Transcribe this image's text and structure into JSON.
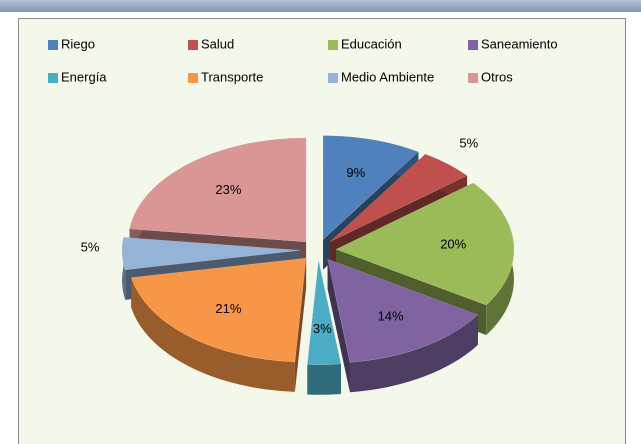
{
  "chart_data": {
    "type": "pie",
    "categories": [
      "Riego",
      "Salud",
      "Educación",
      "Saneamiento",
      "Energía",
      "Transporte",
      "Medio Ambiente",
      "Otros"
    ],
    "values": [
      9,
      5,
      20,
      14,
      3,
      21,
      5,
      23
    ],
    "value_labels": [
      "9%",
      "5%",
      "20%",
      "14%",
      "3%",
      "21%",
      "5%",
      "23%"
    ],
    "colors": [
      "#4f81bd",
      "#c0504d",
      "#9bbb59",
      "#8064a2",
      "#4bacc6",
      "#f79646",
      "#95b3d7",
      "#d99694"
    ],
    "legend": "top"
  }
}
